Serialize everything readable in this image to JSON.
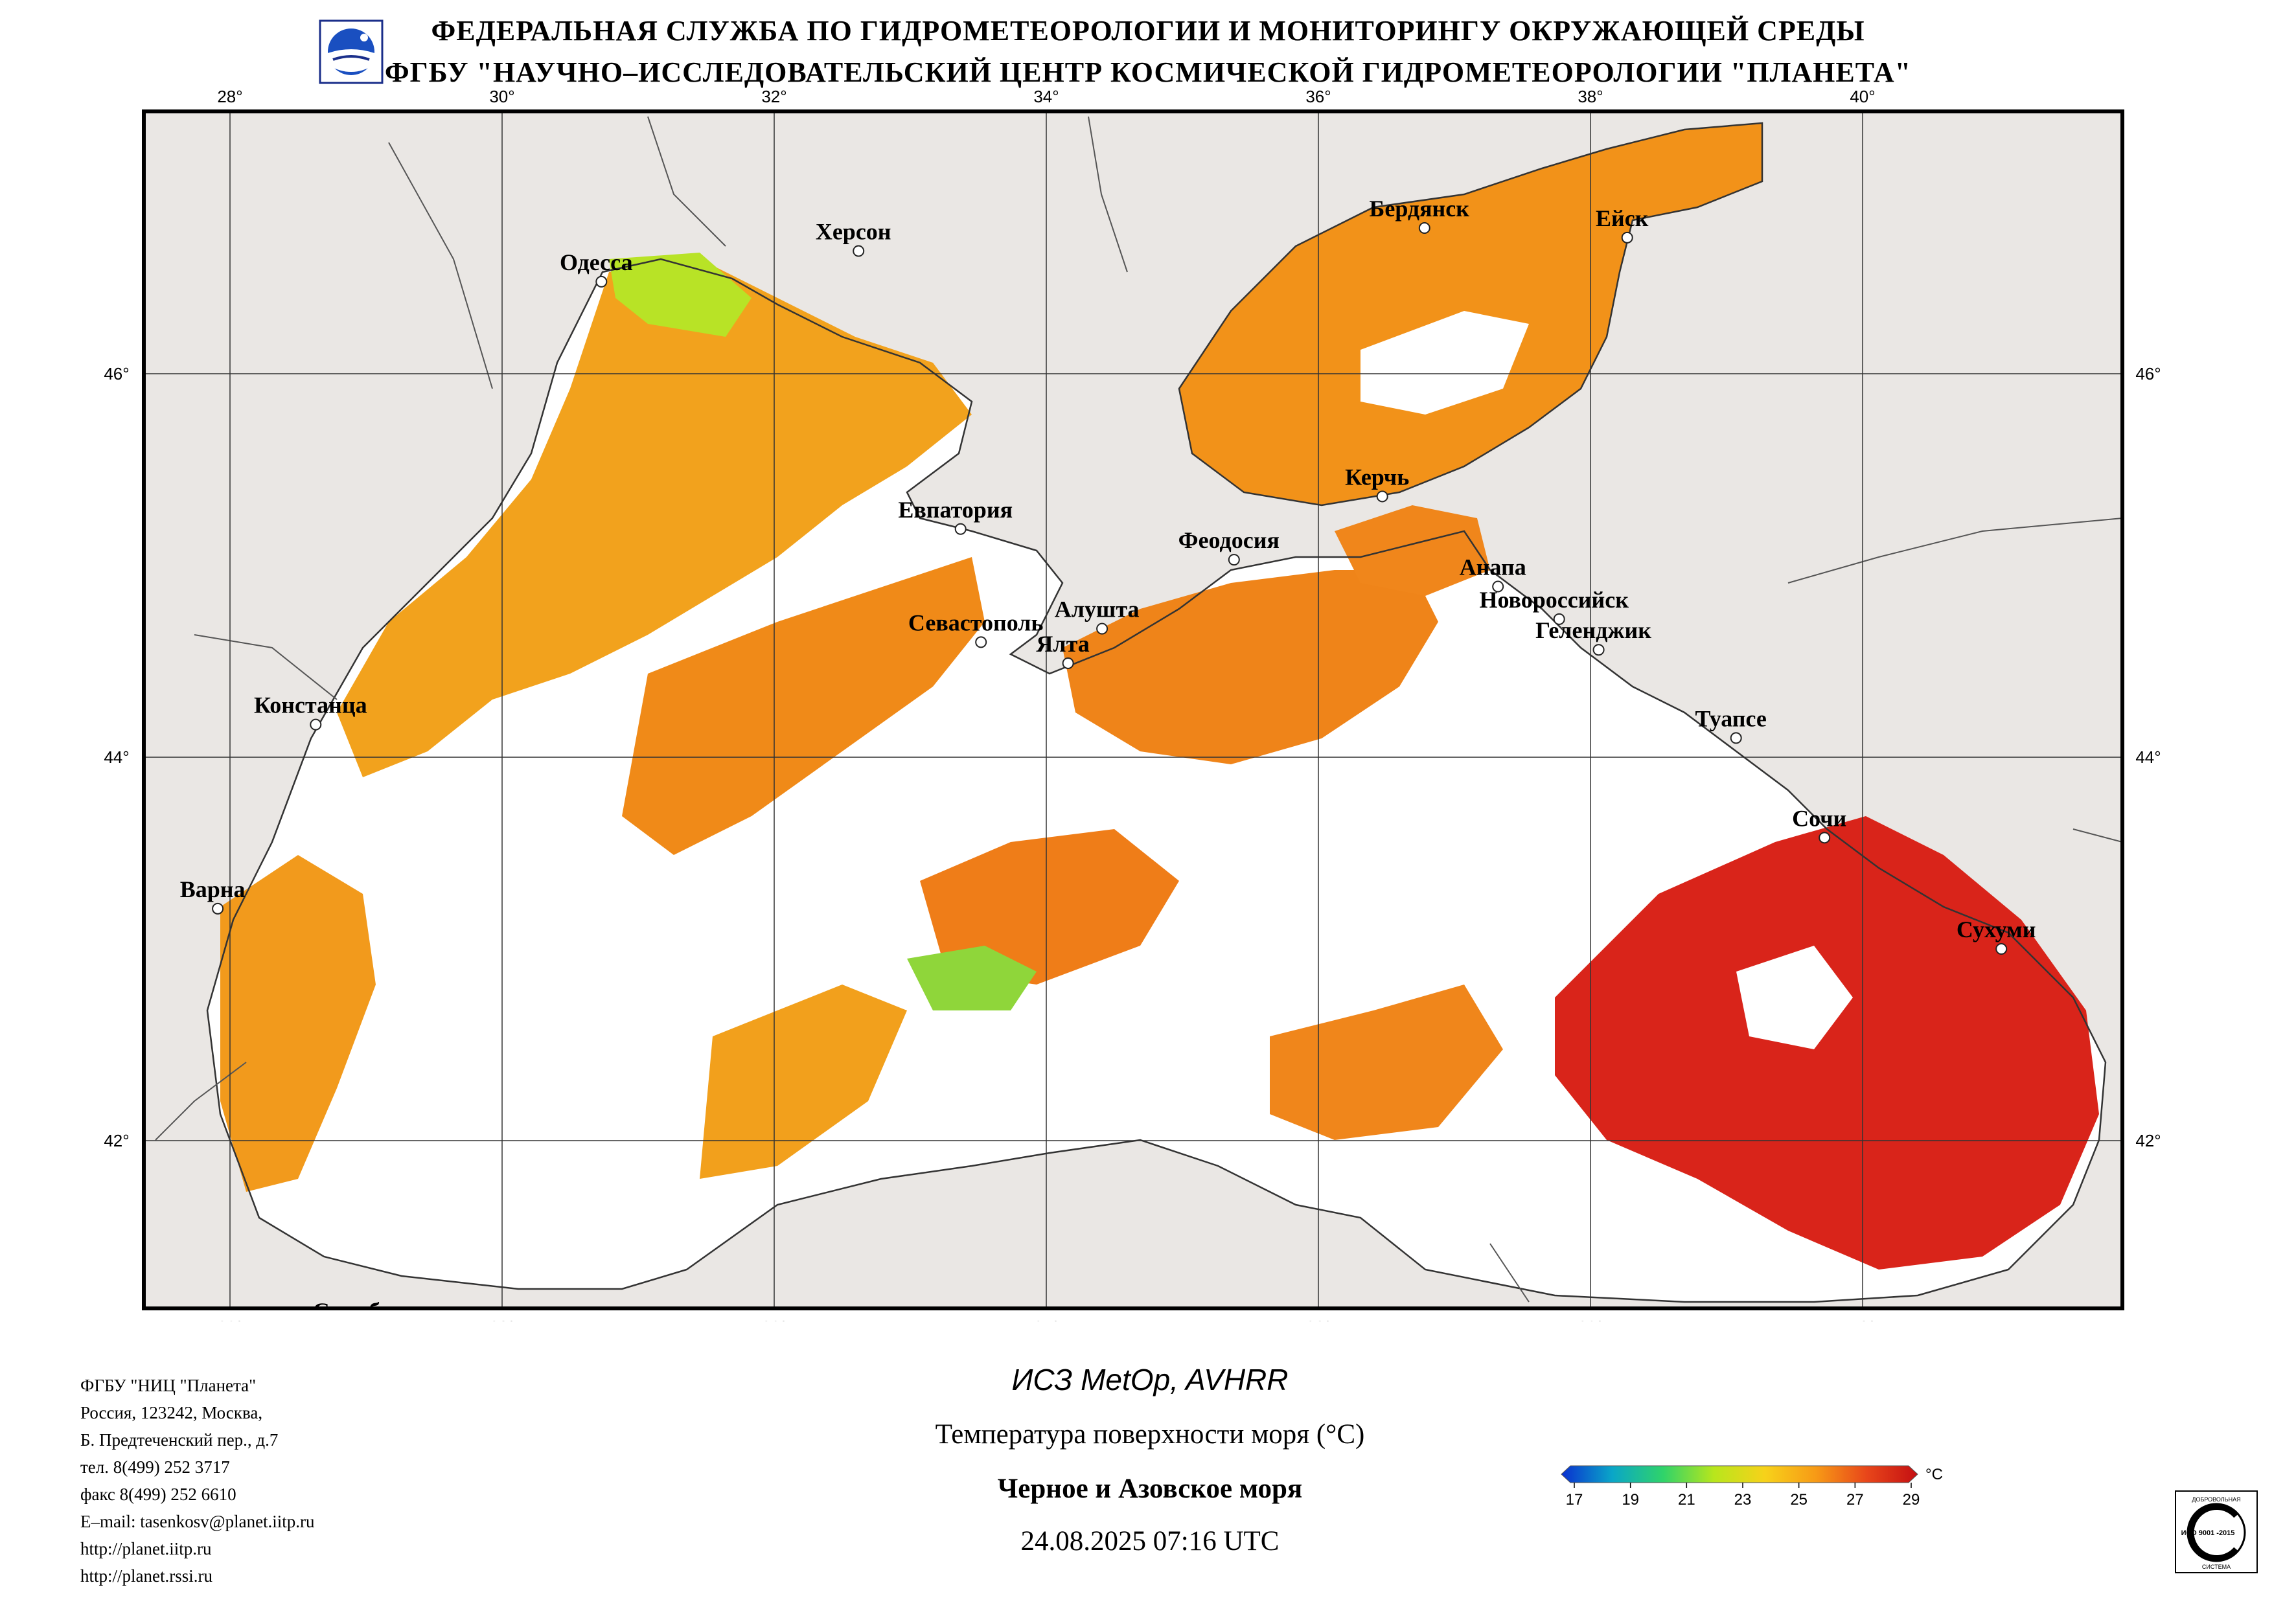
{
  "header": {
    "line1": "ФЕДЕРАЛЬНАЯ СЛУЖБА ПО ГИДРОМЕТЕОРОЛОГИИ И МОНИТОРИНГУ ОКРУЖАЮЩЕЙ СРЕДЫ",
    "line2": "ФГБУ \"НАУЧНО–ИССЛЕДОВАТЕЛЬСКИЙ ЦЕНТР КОСМИЧЕСКОЙ ГИДРОМЕТЕОРОЛОГИИ \"ПЛАНЕТА\""
  },
  "map": {
    "lon_ticks": [
      "28°",
      "30°",
      "32°",
      "34°",
      "36°",
      "38°",
      "40°"
    ],
    "lat_ticks": [
      "46°",
      "44°",
      "42°"
    ],
    "cities": [
      {
        "name": "Одесса",
        "lon": 30.73,
        "lat": 46.48
      },
      {
        "name": "Херсон",
        "lon": 32.62,
        "lat": 46.64
      },
      {
        "name": "Бердянск",
        "lon": 36.78,
        "lat": 46.76
      },
      {
        "name": "Ейск",
        "lon": 38.27,
        "lat": 46.71
      },
      {
        "name": "Евпатория",
        "lon": 33.37,
        "lat": 45.19
      },
      {
        "name": "Керчь",
        "lon": 36.47,
        "lat": 45.36
      },
      {
        "name": "Феодосия",
        "lon": 35.38,
        "lat": 45.03
      },
      {
        "name": "Анапа",
        "lon": 37.32,
        "lat": 44.89
      },
      {
        "name": "Новороссийск",
        "lon": 37.77,
        "lat": 44.72
      },
      {
        "name": "Геленджик",
        "lon": 38.06,
        "lat": 44.56
      },
      {
        "name": "Севастополь",
        "lon": 33.52,
        "lat": 44.6
      },
      {
        "name": "Алушта",
        "lon": 34.41,
        "lat": 44.67
      },
      {
        "name": "Ялта",
        "lon": 34.16,
        "lat": 44.49
      },
      {
        "name": "Констанца",
        "lon": 28.63,
        "lat": 44.17
      },
      {
        "name": "Туапсе",
        "lon": 39.07,
        "lat": 44.1
      },
      {
        "name": "Сочи",
        "lon": 39.72,
        "lat": 43.58
      },
      {
        "name": "Варна",
        "lon": 27.91,
        "lat": 43.21
      },
      {
        "name": "Сухуми",
        "lon": 41.02,
        "lat": 43.0
      },
      {
        "name": "Стамбул",
        "lon": 28.98,
        "lat": 41.01
      }
    ]
  },
  "colorbar": {
    "ticks": [
      "17",
      "19",
      "21",
      "23",
      "25",
      "27",
      "29"
    ],
    "unit": "°C",
    "colors": [
      "#0a2fd0",
      "#0aa6c8",
      "#2fd36a",
      "#b8e61c",
      "#f7d21a",
      "#f79a16",
      "#e8461a",
      "#c40f12"
    ]
  },
  "caption": {
    "satellite": "ИСЗ MetOp, AVHRR",
    "parameter": "Температура поверхности моря (°C)",
    "region": "Черное и Азовское моря",
    "datetime": "24.08.2025 07:16 UTC"
  },
  "contacts": [
    "ФГБУ \"НИЦ \"Планета\"",
    "Россия, 123242, Москва,",
    "Б. Предтеченский пер., д.7",
    "тел. 8(499) 252 3717",
    "факс 8(499) 252 6610",
    "E–mail: tasenkosv@planet.iitp.ru",
    "http://planet.iitp.ru",
    "http://planet.rssi.ru"
  ],
  "iso_badge": {
    "top": "ДОБРОВОЛЬНАЯ",
    "main": "ИСО 9001 -2015",
    "bottom": "СИСТЕМА"
  },
  "palette": {
    "land": "#eae7e4",
    "cloud": "#ffffff",
    "border": "#555555"
  }
}
